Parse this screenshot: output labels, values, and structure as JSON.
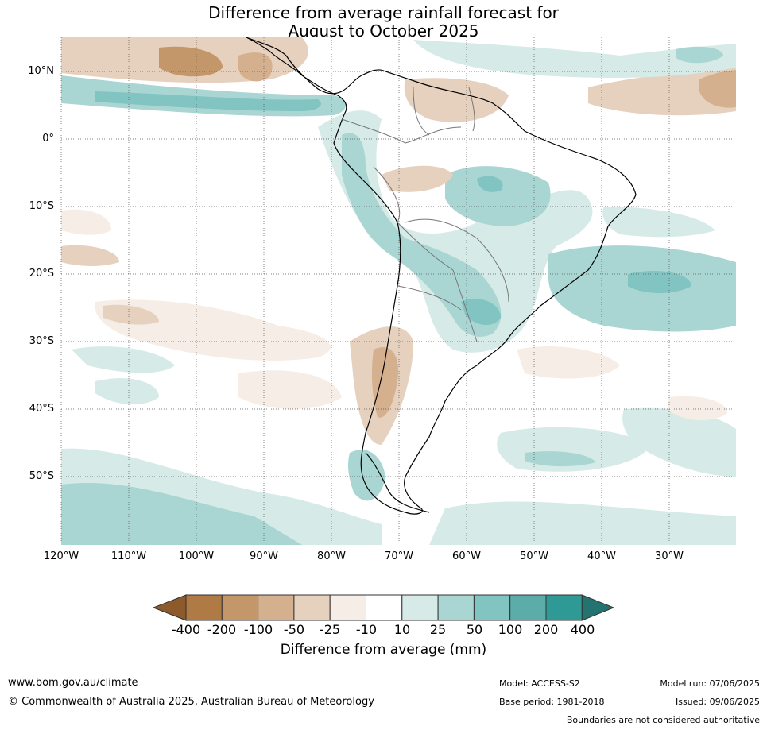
{
  "title_line1": "Difference from average rainfall forecast for",
  "title_line2": "August to October 2025",
  "lat_labels": [
    "10°N",
    "0°",
    "10°S",
    "20°S",
    "30°S",
    "40°S",
    "50°S"
  ],
  "lon_labels": [
    "120°W",
    "110°W",
    "100°W",
    "90°W",
    "80°W",
    "70°W",
    "60°W",
    "50°W",
    "40°W",
    "30°W"
  ],
  "colorbar": {
    "title": "Difference from average (mm)",
    "ticks": [
      "-400",
      "-200",
      "-100",
      "-50",
      "-25",
      "-10",
      "10",
      "25",
      "50",
      "100",
      "200",
      "400"
    ],
    "colors": [
      "#8c5a2b",
      "#b07a45",
      "#c4976b",
      "#d4b08e",
      "#e6d1bf",
      "#f5ede6",
      "#ffffff",
      "#d6eae8",
      "#a9d6d3",
      "#82c4c1",
      "#5cadaa",
      "#2f9995",
      "#237470"
    ]
  },
  "footer": {
    "url": "www.bom.gov.au/climate",
    "copyright": "© Commonwealth of Australia 2025, Australian Bureau of Meteorology",
    "model": "Model: ACCESS-S2",
    "base_period": "Base period: 1981-2018",
    "model_run": "Model run: 07/06/2025",
    "issued": "Issued: 09/06/2025",
    "disclaimer": "Boundaries are not considered authoritative"
  }
}
